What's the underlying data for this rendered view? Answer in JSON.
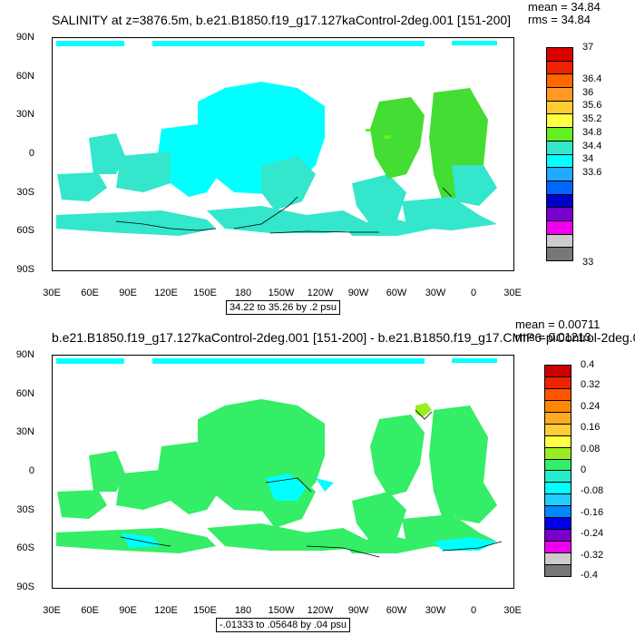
{
  "panel1": {
    "title": "SALINITY at z=3876.5m, b.e21.B1850.f19_g17.127kaControl-2deg.001 [151-200]",
    "mean": "mean = 34.84",
    "rms": "rms = 34.84",
    "contour_info": "34.22 to 35.26 by .2 psu",
    "colorbar_labels": [
      "37",
      "36.4",
      "36",
      "35.6",
      "35.2",
      "34.8",
      "34.4",
      "34",
      "33.6",
      "33"
    ]
  },
  "panel2": {
    "title": "b.e21.B1850.f19_g17.127kaControl-2deg.001 [151-200] - b.e21.B1850.f19_g17.CMIP6-piControl-2deg.0",
    "mean": "mean = 0.00711",
    "rms": "rms = 0.01213",
    "contour_info": "-.01333 to .05648 by .04 psu",
    "colorbar_labels": [
      "0.4",
      "0.32",
      "0.24",
      "0.16",
      "0.08",
      "0",
      "-0.08",
      "-0.16",
      "-0.24",
      "-0.32",
      "-0.4"
    ]
  },
  "axes": {
    "lat_labels": [
      "90N",
      "60N",
      "30N",
      "0",
      "30S",
      "60S",
      "90S"
    ],
    "lon_labels": [
      "30E",
      "60E",
      "90E",
      "120E",
      "150E",
      "180",
      "150W",
      "120W",
      "90W",
      "60W",
      "30W",
      "0",
      "30E"
    ]
  },
  "colors": {
    "panel1_fill": "#00ffff",
    "panel1_mid": "#33e6cc",
    "panel1_green": "#44dd33",
    "panel1_lime": "#66ee22",
    "panel2_fill": "#33ee66",
    "panel2_cyan": "#00ffff",
    "colorbar1": [
      "#dd0000",
      "#ee2200",
      "#ff6600",
      "#ff9922",
      "#ffcc33",
      "#ffff44",
      "#66ee22",
      "#33e6cc",
      "#00ffff",
      "#22aaff",
      "#0066ff",
      "#0000cc",
      "#7700cc",
      "#ee00ee",
      "#cccccc",
      "#777777"
    ],
    "colorbar2": [
      "#cc0000",
      "#ee2200",
      "#ff5500",
      "#ff8800",
      "#ffaa22",
      "#ffcc33",
      "#ffff44",
      "#99ee22",
      "#33ee66",
      "#22eecc",
      "#00ffff",
      "#22ccff",
      "#0088ff",
      "#0000ee",
      "#7700cc",
      "#ee00ee",
      "#cccccc",
      "#777777"
    ]
  }
}
